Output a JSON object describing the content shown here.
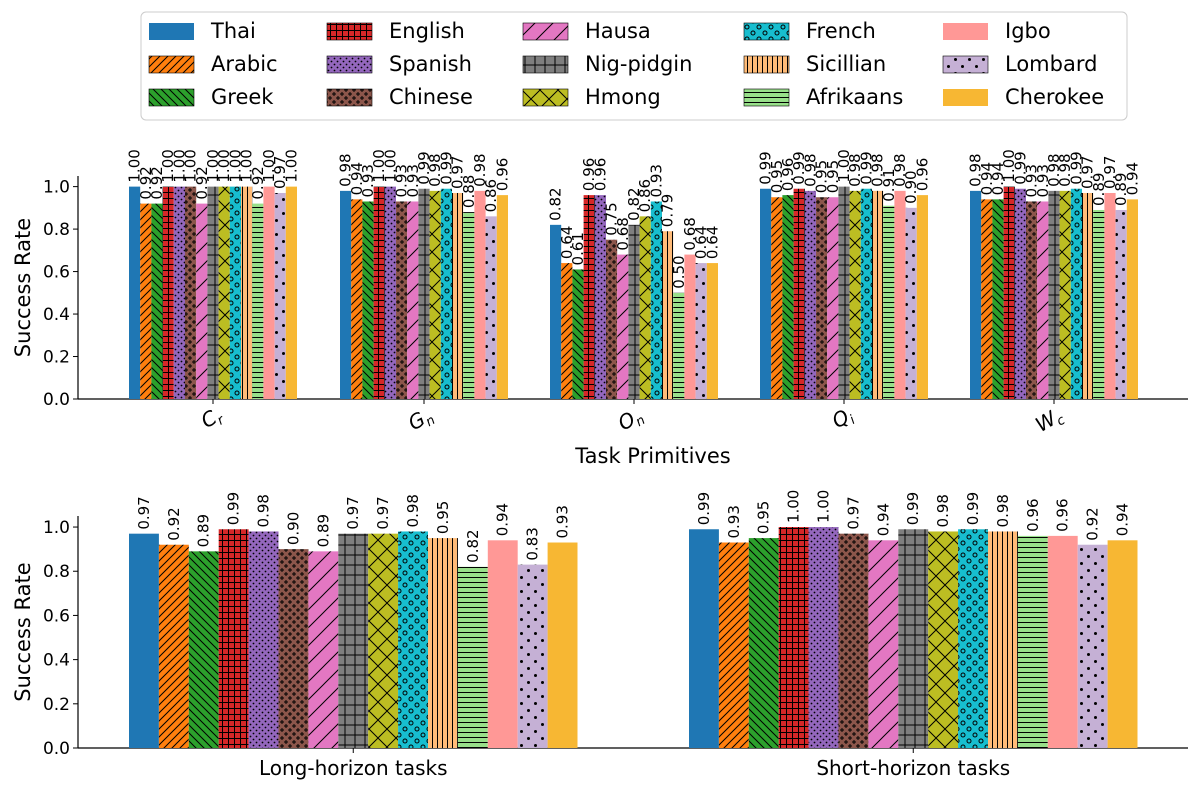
{
  "chart_data": [
    {
      "type": "bar",
      "ylabel": "Success Rate",
      "xlabel": "Task Primitives",
      "ylim": [
        0,
        1.05
      ],
      "yticks": [
        "0.0",
        "0.2",
        "0.4",
        "0.6",
        "0.8",
        "1.0"
      ],
      "categories": [
        "C_r",
        "G_n",
        "O_n",
        "Q_i",
        "W_c"
      ],
      "category_display": [
        {
          "base": "C",
          "sub": "r"
        },
        {
          "base": "G",
          "sub": "n"
        },
        {
          "base": "O",
          "sub": "n"
        },
        {
          "base": "Q",
          "sub": "i"
        },
        {
          "base": "W",
          "sub": "c"
        }
      ],
      "series": [
        {
          "name": "Thai",
          "values": [
            1.0,
            0.98,
            0.82,
            0.99,
            0.98
          ]
        },
        {
          "name": "Arabic",
          "values": [
            0.92,
            0.94,
            0.64,
            0.95,
            0.94
          ]
        },
        {
          "name": "Greek",
          "values": [
            0.92,
            0.93,
            0.61,
            0.96,
            0.94
          ]
        },
        {
          "name": "English",
          "values": [
            1.0,
            1.0,
            0.96,
            0.99,
            1.0
          ]
        },
        {
          "name": "Spanish",
          "values": [
            1.0,
            1.0,
            0.96,
            0.98,
            0.99
          ]
        },
        {
          "name": "Chinese",
          "values": [
            1.0,
            0.93,
            0.75,
            0.95,
            0.93
          ]
        },
        {
          "name": "Hausa",
          "values": [
            0.92,
            0.93,
            0.68,
            0.95,
            0.93
          ]
        },
        {
          "name": "Nig-pidgin",
          "values": [
            1.0,
            0.99,
            0.82,
            1.0,
            0.98
          ]
        },
        {
          "name": "Hmong",
          "values": [
            1.0,
            0.98,
            0.86,
            0.98,
            0.98
          ]
        },
        {
          "name": "French",
          "values": [
            1.0,
            0.99,
            0.93,
            0.99,
            0.99
          ]
        },
        {
          "name": "Sicillian",
          "values": [
            1.0,
            0.97,
            0.79,
            0.98,
            0.97
          ]
        },
        {
          "name": "Afrikaans",
          "values": [
            0.92,
            0.88,
            0.5,
            0.91,
            0.89
          ]
        },
        {
          "name": "Igbo",
          "values": [
            1.0,
            0.98,
            0.68,
            0.98,
            0.97
          ]
        },
        {
          "name": "Lombard",
          "values": [
            0.97,
            0.86,
            0.64,
            0.9,
            0.89
          ]
        },
        {
          "name": "Cherokee",
          "values": [
            1.0,
            0.96,
            0.64,
            0.96,
            0.94
          ]
        }
      ]
    },
    {
      "type": "bar",
      "ylabel": "Success Rate",
      "xlabel": "",
      "ylim": [
        0,
        1.05
      ],
      "yticks": [
        "0.0",
        "0.2",
        "0.4",
        "0.6",
        "0.8",
        "1.0"
      ],
      "categories": [
        "Long-horizon tasks",
        "Short-horizon tasks"
      ],
      "series": [
        {
          "name": "Thai",
          "values": [
            0.97,
            0.99
          ]
        },
        {
          "name": "Arabic",
          "values": [
            0.92,
            0.93
          ]
        },
        {
          "name": "Greek",
          "values": [
            0.89,
            0.95
          ]
        },
        {
          "name": "English",
          "values": [
            0.99,
            1.0
          ]
        },
        {
          "name": "Spanish",
          "values": [
            0.98,
            1.0
          ]
        },
        {
          "name": "Chinese",
          "values": [
            0.9,
            0.97
          ]
        },
        {
          "name": "Hausa",
          "values": [
            0.89,
            0.94
          ]
        },
        {
          "name": "Nig-pidgin",
          "values": [
            0.97,
            0.99
          ]
        },
        {
          "name": "Hmong",
          "values": [
            0.97,
            0.98
          ]
        },
        {
          "name": "French",
          "values": [
            0.98,
            0.99
          ]
        },
        {
          "name": "Sicillian",
          "values": [
            0.95,
            0.98
          ]
        },
        {
          "name": "Afrikaans",
          "values": [
            0.82,
            0.96
          ]
        },
        {
          "name": "Igbo",
          "values": [
            0.94,
            0.96
          ]
        },
        {
          "name": "Lombard",
          "values": [
            0.83,
            0.92
          ]
        },
        {
          "name": "Cherokee",
          "values": [
            0.93,
            0.94
          ]
        }
      ]
    }
  ],
  "legend": {
    "placement": "top-center",
    "columns": 5,
    "entries": [
      {
        "label": "Thai",
        "color": "#1f77b4",
        "pattern": "solid"
      },
      {
        "label": "Arabic",
        "color": "#ff7f0e",
        "pattern": "diag-fwd"
      },
      {
        "label": "Greek",
        "color": "#2ca02c",
        "pattern": "diag-back"
      },
      {
        "label": "English",
        "color": "#d62728",
        "pattern": "grid"
      },
      {
        "label": "Spanish",
        "color": "#9467bd",
        "pattern": "dots"
      },
      {
        "label": "Chinese",
        "color": "#8c564b",
        "pattern": "stars"
      },
      {
        "label": "Hausa",
        "color": "#e377c2",
        "pattern": "diag-fwd-sparse"
      },
      {
        "label": "Nig-pidgin",
        "color": "#7f7f7f",
        "pattern": "plus"
      },
      {
        "label": "Hmong",
        "color": "#bcbd22",
        "pattern": "cross"
      },
      {
        "label": "French",
        "color": "#17becf",
        "pattern": "circles"
      },
      {
        "label": "Sicillian",
        "color": "#ffbb78",
        "pattern": "vlines"
      },
      {
        "label": "Afrikaans",
        "color": "#98df8a",
        "pattern": "hlines"
      },
      {
        "label": "Igbo",
        "color": "#ff9896",
        "pattern": "solid"
      },
      {
        "label": "Lombard",
        "color": "#c5b0d5",
        "pattern": "sparse-dots"
      },
      {
        "label": "Cherokee",
        "color": "#f7b733",
        "pattern": "solid"
      }
    ]
  }
}
